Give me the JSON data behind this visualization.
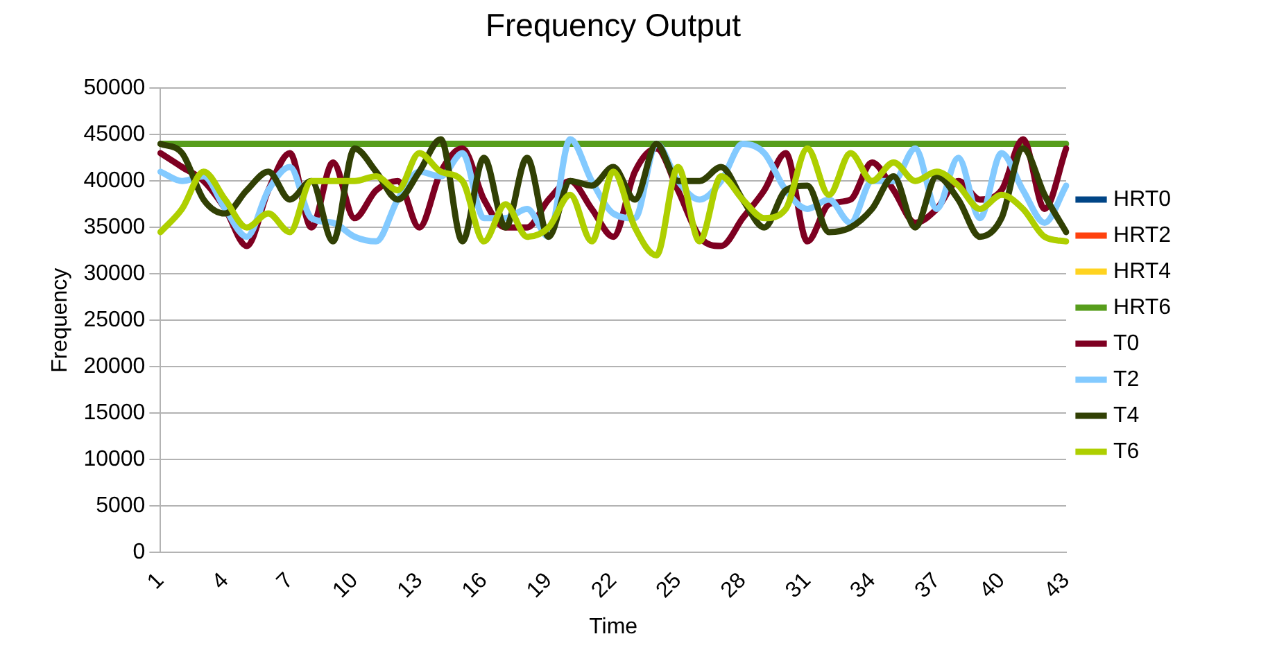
{
  "chart_data": {
    "type": "line",
    "title": "Frequency Output",
    "xlabel": "Time",
    "ylabel": "Frequency",
    "categories": [
      "1",
      null,
      null,
      "4",
      null,
      null,
      "7",
      null,
      null,
      "10",
      null,
      null,
      "13",
      null,
      null,
      "16",
      null,
      null,
      "19",
      null,
      null,
      "22",
      null,
      null,
      "25",
      null,
      null,
      "28",
      null,
      null,
      "31",
      null,
      null,
      "34",
      null,
      null,
      "37",
      null,
      null,
      "40",
      null,
      null,
      "43"
    ],
    "ylim": [
      0,
      50000
    ],
    "yticks": [
      0,
      5000,
      10000,
      15000,
      20000,
      25000,
      30000,
      35000,
      40000,
      45000,
      50000
    ],
    "grid": "y",
    "legend": "right",
    "marker": "none",
    "line_style": "solid",
    "series": [
      {
        "name": "HRT0",
        "color": "#004586",
        "values": [
          null,
          null,
          null,
          null,
          null,
          null,
          null,
          null,
          null,
          null,
          null,
          null,
          null,
          null,
          null,
          null,
          null,
          null,
          null,
          null,
          null,
          null,
          null,
          null,
          null,
          null,
          null,
          null,
          null,
          null,
          null,
          null,
          null,
          null,
          null,
          null,
          null,
          null,
          null,
          null,
          null,
          null,
          null
        ]
      },
      {
        "name": "HRT2",
        "color": "#ff420e",
        "values": [
          null,
          null,
          null,
          null,
          null,
          null,
          null,
          null,
          null,
          null,
          null,
          null,
          null,
          null,
          null,
          null,
          null,
          null,
          null,
          null,
          null,
          null,
          null,
          null,
          null,
          null,
          null,
          null,
          null,
          null,
          null,
          null,
          null,
          null,
          null,
          null,
          null,
          null,
          null,
          null,
          null,
          null,
          null
        ]
      },
      {
        "name": "HRT4",
        "color": "#ffd320",
        "values": [
          null,
          null,
          null,
          null,
          null,
          null,
          null,
          null,
          null,
          null,
          null,
          null,
          null,
          null,
          null,
          null,
          null,
          null,
          null,
          null,
          null,
          null,
          null,
          null,
          null,
          null,
          null,
          null,
          null,
          null,
          null,
          null,
          null,
          null,
          null,
          null,
          null,
          null,
          null,
          null,
          null,
          null,
          null
        ]
      },
      {
        "name": "HRT6",
        "color": "#579d1c",
        "values": [
          44000,
          44000,
          44000,
          44000,
          44000,
          44000,
          44000,
          44000,
          44000,
          44000,
          44000,
          44000,
          44000,
          44000,
          44000,
          44000,
          44000,
          44000,
          44000,
          44000,
          44000,
          44000,
          44000,
          44000,
          44000,
          44000,
          44000,
          44000,
          44000,
          44000,
          44000,
          44000,
          44000,
          44000,
          44000,
          44000,
          44000,
          44000,
          44000,
          44000,
          44000,
          44000,
          44000
        ]
      },
      {
        "name": "T0",
        "color": "#7e0021",
        "values": [
          43000,
          41500,
          40000,
          37000,
          33000,
          39000,
          43000,
          35000,
          42000,
          36000,
          39000,
          40000,
          35000,
          41000,
          43500,
          38000,
          35000,
          35000,
          38000,
          40000,
          37000,
          34000,
          41000,
          43500,
          39000,
          34000,
          33000,
          36000,
          39000,
          43000,
          33500,
          37500,
          38000,
          42000,
          39000,
          35500,
          37000,
          40000,
          38000,
          39000,
          44500,
          37000,
          43500
        ]
      },
      {
        "name": "T2",
        "color": "#83caff",
        "values": [
          41000,
          40000,
          40500,
          37000,
          34000,
          39000,
          41500,
          36000,
          35500,
          34000,
          33500,
          38000,
          41000,
          40500,
          43000,
          36000,
          36000,
          37000,
          34000,
          44500,
          40000,
          36500,
          36000,
          44000,
          40000,
          38000,
          40000,
          44000,
          43000,
          39000,
          37000,
          38000,
          35500,
          40000,
          40000,
          43500,
          37000,
          42500,
          36000,
          43000,
          39000,
          35500,
          39500
        ]
      },
      {
        "name": "T4",
        "color": "#314004",
        "values": [
          44000,
          43000,
          38000,
          36500,
          39000,
          41000,
          38000,
          40000,
          33500,
          43500,
          41000,
          38000,
          41000,
          44500,
          33500,
          42500,
          35000,
          42500,
          34000,
          40000,
          39500,
          41500,
          38000,
          44000,
          40000,
          40000,
          41500,
          38000,
          35000,
          39000,
          39500,
          34500,
          35000,
          37000,
          40500,
          35000,
          40500,
          38000,
          34000,
          36000,
          43500,
          38500,
          34500
        ]
      },
      {
        "name": "T6",
        "color": "#aecf00",
        "values": [
          34500,
          37000,
          41000,
          38000,
          35000,
          36500,
          34500,
          40000,
          40000,
          40000,
          40500,
          39000,
          43000,
          41000,
          40000,
          33500,
          37500,
          34000,
          35000,
          38500,
          33500,
          41000,
          35000,
          32000,
          41500,
          33500,
          40500,
          38000,
          36000,
          37000,
          43500,
          38500,
          43000,
          40000,
          42000,
          40000,
          41000,
          39500,
          37000,
          38500,
          37000,
          34000,
          33500
        ]
      }
    ]
  }
}
